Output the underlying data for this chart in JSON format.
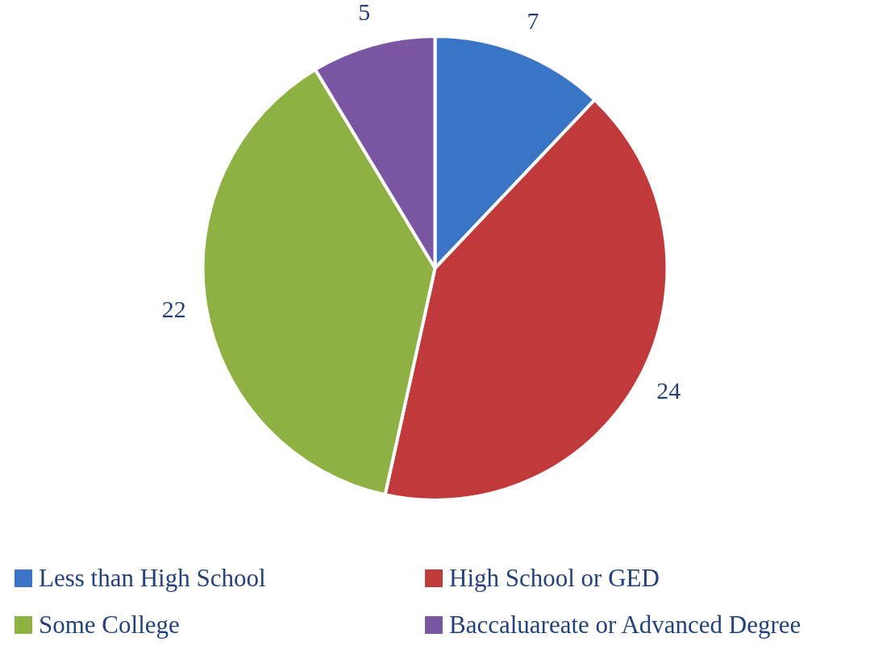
{
  "chart_data": {
    "type": "pie",
    "categories": [
      "Less than High School",
      "High School or GED",
      "Some College",
      "Baccaluareate or Advanced Degree"
    ],
    "values": [
      7,
      24,
      22,
      5
    ],
    "colors": [
      "#3a74c4",
      "#c0393b",
      "#8fb043",
      "#7a56a3"
    ],
    "data_labels": true,
    "legend": "bottom"
  }
}
